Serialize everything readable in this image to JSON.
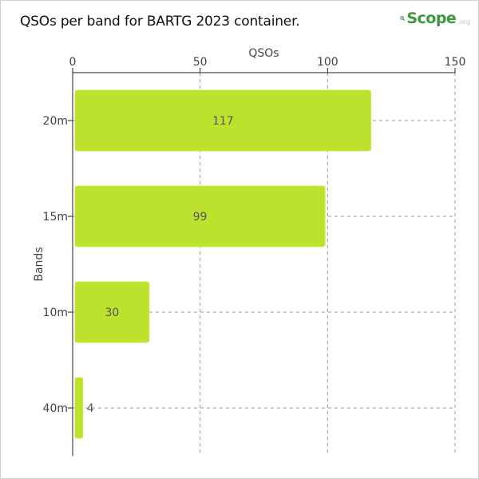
{
  "page": {
    "title": "QSOs per band for BARTG 2023 container.",
    "logo": {
      "text": "Scope",
      "suffix": ".org",
      "letter": "Q"
    }
  },
  "colors": {
    "bar": "#bde22e",
    "bar_stroke": "#c9eb52",
    "grid": "#999999",
    "axis": "#222222",
    "text": "#444444",
    "logo_green": "#3a9a3a"
  },
  "chart_data": {
    "type": "bar",
    "orientation": "horizontal",
    "title": "QSOs per band for BARTG 2023 container.",
    "xlabel": "QSOs",
    "ylabel": "Bands",
    "x_axis_position": "top",
    "xlim": [
      0,
      150
    ],
    "xticks": [
      0,
      50,
      100,
      150
    ],
    "categories": [
      "20m",
      "15m",
      "10m",
      "40m"
    ],
    "values": [
      117,
      99,
      30,
      4
    ],
    "data_labels": [
      "117",
      "99",
      "30",
      "4"
    ],
    "grid": "vertical dashed",
    "legend": "none"
  }
}
